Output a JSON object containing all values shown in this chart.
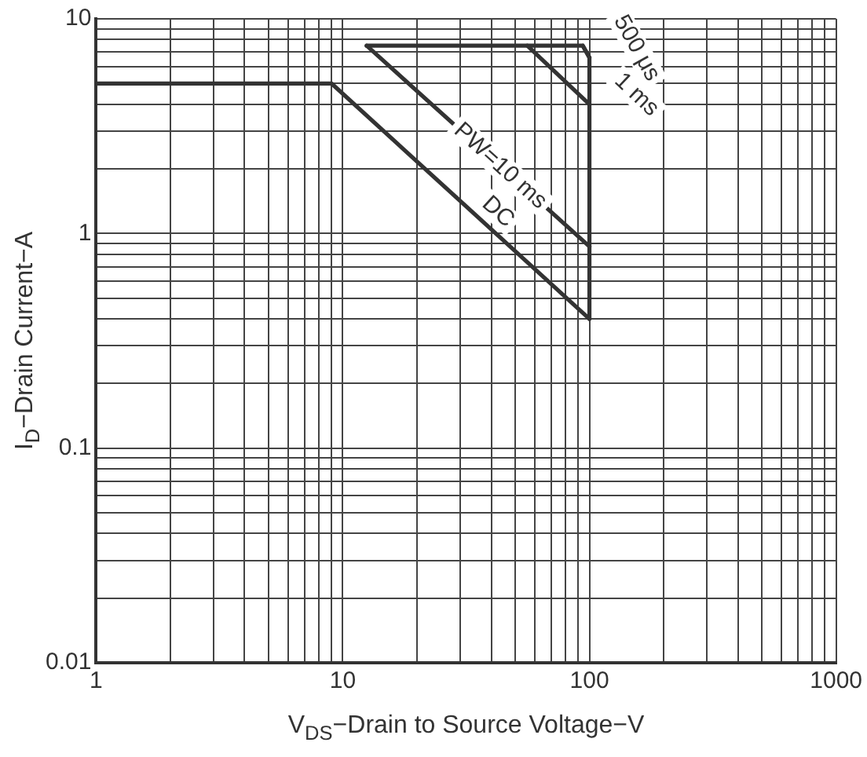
{
  "chart_data": {
    "type": "line",
    "xlabel": "V$_{DS}$−Drain to Source Voltage−V",
    "ylabel": "I$_{D}$−Drain Current−A",
    "series": [
      {
        "name": "DC",
        "color": "#333333",
        "x": [
          1,
          9,
          100
        ],
        "values": [
          5,
          5,
          0.4
        ]
      },
      {
        "name": "PW=10 ms",
        "color": "#333333",
        "x": [
          12.5,
          100
        ],
        "values": [
          7.5,
          0.87
        ]
      },
      {
        "name": "1 ms",
        "color": "#333333",
        "x": [
          56,
          100
        ],
        "values": [
          7.5,
          4
        ]
      },
      {
        "name": "500 μs",
        "color": "#333333",
        "x": [
          94,
          100
        ],
        "values": [
          7.5,
          6.6
        ]
      },
      {
        "color": "#333333",
        "x": [
          12.5,
          94,
          100,
          100
        ],
        "values": [
          7.5,
          7.5,
          6.6,
          0.4
        ]
      }
    ],
    "log": "xy",
    "xlim": [
      1,
      1000
    ],
    "ylim": [
      0.01,
      10
    ],
    "xticks": [
      1,
      {
        "value": 2,
        "label": null
      },
      {
        "value": 3,
        "label": null
      },
      {
        "value": 4,
        "label": null
      },
      {
        "value": 5,
        "label": null
      },
      {
        "value": 6,
        "label": null
      },
      {
        "value": 7,
        "label": null
      },
      {
        "value": 8,
        "label": null
      },
      {
        "value": 9,
        "label": null
      },
      10,
      {
        "value": 20,
        "label": null
      },
      {
        "value": 30,
        "label": null
      },
      {
        "value": 40,
        "label": null
      },
      {
        "value": 50,
        "label": null
      },
      {
        "value": 60,
        "label": null
      },
      {
        "value": 70,
        "label": null
      },
      {
        "value": 80,
        "label": null
      },
      {
        "value": 90,
        "label": null
      },
      100,
      {
        "value": 200,
        "label": null
      },
      {
        "value": 300,
        "label": null
      },
      {
        "value": 400,
        "label": null
      },
      {
        "value": 500,
        "label": null
      },
      {
        "value": 600,
        "label": null
      },
      {
        "value": 700,
        "label": null
      },
      {
        "value": 800,
        "label": null
      },
      {
        "value": 900,
        "label": null
      },
      1000
    ],
    "yticks": [
      0.01,
      {
        "value": 0.02,
        "label": null
      },
      {
        "value": 0.03,
        "label": null
      },
      {
        "value": 0.04,
        "label": null
      },
      {
        "value": 0.05,
        "label": null
      },
      {
        "value": 0.06,
        "label": null
      },
      {
        "value": 0.07,
        "label": null
      },
      {
        "value": 0.08,
        "label": null
      },
      {
        "value": 0.09,
        "label": null
      },
      0.1,
      {
        "value": 0.2,
        "label": null
      },
      {
        "value": 0.3,
        "label": null
      },
      {
        "value": 0.4,
        "label": null
      },
      {
        "value": 0.5,
        "label": null
      },
      {
        "value": 0.6,
        "label": null
      },
      {
        "value": 0.7,
        "label": null
      },
      {
        "value": 0.8,
        "label": null
      },
      {
        "value": 0.9,
        "label": null
      },
      1,
      {
        "value": 2,
        "label": null
      },
      {
        "value": 3,
        "label": null
      },
      {
        "value": 4,
        "label": null
      },
      {
        "value": 5,
        "label": null
      },
      {
        "value": 6,
        "label": null
      },
      {
        "value": 7,
        "label": null
      },
      {
        "value": 8,
        "label": null
      },
      {
        "value": 9,
        "label": null
      },
      10
    ],
    "grid": true,
    "legend": false,
    "marker": "none",
    "line_style": "solid"
  }
}
